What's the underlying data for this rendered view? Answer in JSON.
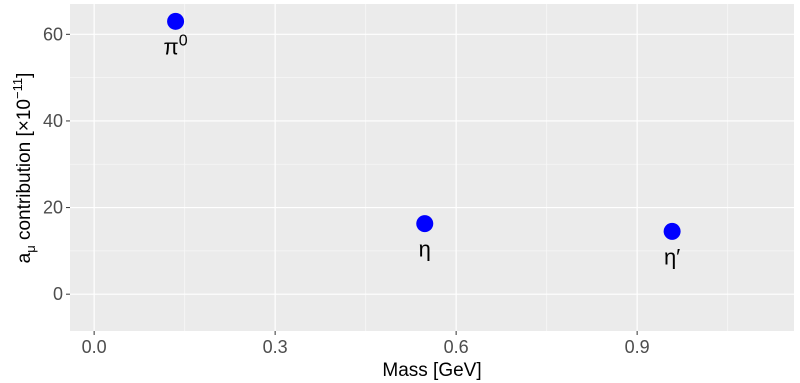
{
  "chart_data": {
    "type": "scatter",
    "title": "",
    "xlabel": "Mass [GeV]",
    "ylabel": {
      "main": "a",
      "subscript": "μ",
      "text": " contribution [×10",
      "superscript": "−11",
      "close": "]"
    },
    "xlim": [
      -0.04,
      1.16
    ],
    "ylim": [
      -8.5,
      67
    ],
    "x_ticks": [
      {
        "value": 0.0,
        "label": "0.0"
      },
      {
        "value": 0.3,
        "label": "0.3"
      },
      {
        "value": 0.6,
        "label": "0.6"
      },
      {
        "value": 0.9,
        "label": "0.9"
      }
    ],
    "y_ticks": [
      {
        "value": 0,
        "label": "0"
      },
      {
        "value": 20,
        "label": "20"
      },
      {
        "value": 40,
        "label": "40"
      },
      {
        "value": 60,
        "label": "60"
      }
    ],
    "grid": true,
    "points": [
      {
        "label": "π",
        "label_sup": "0",
        "x": 0.135,
        "y": 63.0
      },
      {
        "label": "η",
        "label_sup": "",
        "x": 0.548,
        "y": 16.3
      },
      {
        "label": "η′",
        "label_sup": "",
        "x": 0.958,
        "y": 14.5
      }
    ],
    "colors": {
      "panel": "#EBEBEB",
      "grid_major": "#FFFFFF",
      "grid_minor": "#F7F7F7",
      "point": "#0000FF"
    }
  }
}
